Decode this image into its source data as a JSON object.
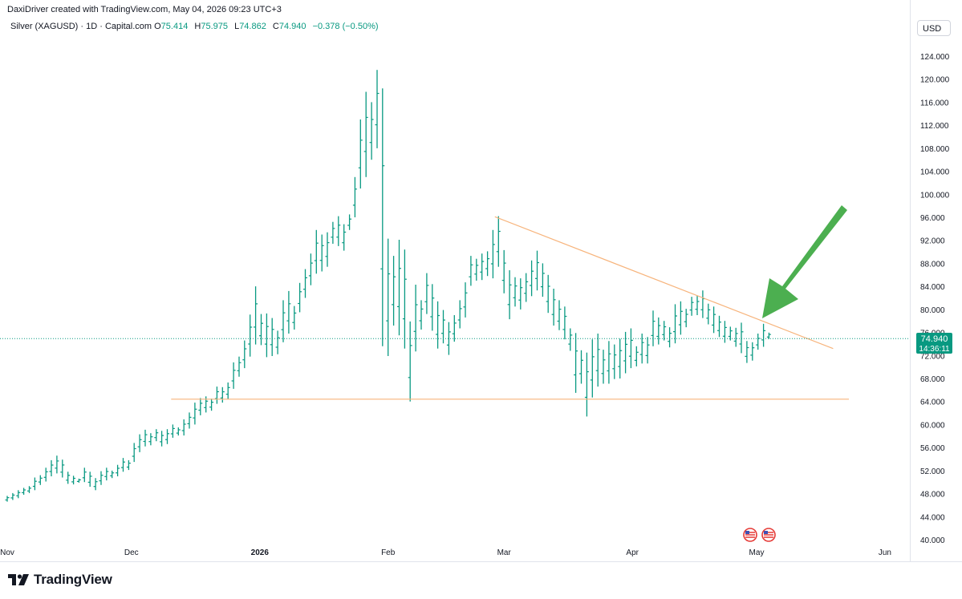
{
  "header": {
    "attribution": "DaxiDriver created with TradingView.com, May 04, 2026 09:23 UTC+3"
  },
  "legend": {
    "symbol_text": "Silver (XAGUSD) · 1D · Capital.com",
    "open_label": "O",
    "open": "75.414",
    "high_label": "H",
    "high": "75.975",
    "low_label": "L",
    "low": "74.862",
    "close_label": "C",
    "close": "74.940",
    "change": "−0.378 (−0.50%)"
  },
  "currency_button": "USD",
  "price_tag": {
    "price": "74.940",
    "countdown": "14:36:11"
  },
  "brand": "TradingView",
  "colors": {
    "up": "#089981",
    "trend": "#f7b47c",
    "arrow": "#4caf50",
    "axis_text": "#131722"
  },
  "chart_data": {
    "type": "ohlc-bar",
    "title": "Silver (XAGUSD) · 1D · Capital.com",
    "y_axis": {
      "position": "right",
      "range": [
        38,
        126
      ],
      "ticks": [
        "124.000",
        "120.000",
        "116.000",
        "112.000",
        "108.000",
        "104.000",
        "100.000",
        "96.000",
        "92.000",
        "88.000",
        "84.000",
        "80.000",
        "76.000",
        "72.000",
        "68.000",
        "64.000",
        "60.000",
        "56.000",
        "52.000",
        "48.000",
        "44.000",
        "40.000"
      ]
    },
    "x_axis": {
      "ticks": [
        {
          "label": "Nov",
          "day": 0
        },
        {
          "label": "Dec",
          "day": 30
        },
        {
          "label": "2026",
          "day": 61
        },
        {
          "label": "Feb",
          "day": 92
        },
        {
          "label": "Mar",
          "day": 120
        },
        {
          "label": "Apr",
          "day": 151
        },
        {
          "label": "May",
          "day": 181
        },
        {
          "label": "Jun",
          "day": 212
        }
      ]
    },
    "last_price": 74.94,
    "bars": [
      [
        47.6,
        46.6
      ],
      [
        48.1,
        46.9
      ],
      [
        48.6,
        47.2
      ],
      [
        49.0,
        47.8
      ],
      [
        49.3,
        48.1
      ],
      [
        50.8,
        48.6
      ],
      [
        51.2,
        49.5
      ],
      [
        52.5,
        50.1
      ],
      [
        53.8,
        51.0
      ],
      [
        54.6,
        51.5
      ],
      [
        53.9,
        50.8
      ],
      [
        51.8,
        49.7
      ],
      [
        51.1,
        49.6
      ],
      [
        50.6,
        49.9
      ],
      [
        52.5,
        50.0
      ],
      [
        51.8,
        49.2
      ],
      [
        50.7,
        48.6
      ],
      [
        51.9,
        49.5
      ],
      [
        52.5,
        50.3
      ],
      [
        52.0,
        50.7
      ],
      [
        53.0,
        51.0
      ],
      [
        54.2,
        51.8
      ],
      [
        53.8,
        52.1
      ],
      [
        56.8,
        53.5
      ],
      [
        58.3,
        55.2
      ],
      [
        59.1,
        56.2
      ],
      [
        58.5,
        56.4
      ],
      [
        59.2,
        57.1
      ],
      [
        58.9,
        56.2
      ],
      [
        59.2,
        56.6
      ],
      [
        60.0,
        57.7
      ],
      [
        59.5,
        58.1
      ],
      [
        60.9,
        58.1
      ],
      [
        62.1,
        59.3
      ],
      [
        63.8,
        60.0
      ],
      [
        64.6,
        61.6
      ],
      [
        64.9,
        62.1
      ],
      [
        64.5,
        62.4
      ],
      [
        66.6,
        63.6
      ],
      [
        66.5,
        63.8
      ],
      [
        67.3,
        64.4
      ],
      [
        70.8,
        66.2
      ],
      [
        71.8,
        68.3
      ],
      [
        74.6,
        69.8
      ],
      [
        79.1,
        71.8
      ],
      [
        84.0,
        73.9
      ],
      [
        79.2,
        73.8
      ],
      [
        79.3,
        71.7
      ],
      [
        78.5,
        71.9
      ],
      [
        76.3,
        72.2
      ],
      [
        81.6,
        74.3
      ],
      [
        83.2,
        75.8
      ],
      [
        80.6,
        76.5
      ],
      [
        84.6,
        79.5
      ],
      [
        87.0,
        82.0
      ],
      [
        89.7,
        84.2
      ],
      [
        93.8,
        86.2
      ],
      [
        93.0,
        86.6
      ],
      [
        93.4,
        87.4
      ],
      [
        95.2,
        91.4
      ],
      [
        96.2,
        91.0
      ],
      [
        94.8,
        90.2
      ],
      [
        96.5,
        93.8
      ],
      [
        103.0,
        96.0
      ],
      [
        113.0,
        101.0
      ],
      [
        117.8,
        103.0
      ],
      [
        116.0,
        106.0
      ],
      [
        121.6,
        108.0
      ],
      [
        118.4,
        73.6
      ],
      [
        92.3,
        71.9
      ],
      [
        89.3,
        77.2
      ],
      [
        92.1,
        75.5
      ],
      [
        90.4,
        73.2
      ],
      [
        77.9,
        64.0
      ],
      [
        84.3,
        72.7
      ],
      [
        81.6,
        76.5
      ],
      [
        86.3,
        79.2
      ],
      [
        84.4,
        76.3
      ],
      [
        81.4,
        73.2
      ],
      [
        79.9,
        74.1
      ],
      [
        77.8,
        72.1
      ],
      [
        79.0,
        74.4
      ],
      [
        81.6,
        76.7
      ],
      [
        84.7,
        78.6
      ],
      [
        89.3,
        84.1
      ],
      [
        88.8,
        85.0
      ],
      [
        89.7,
        85.1
      ],
      [
        90.1,
        85.8
      ],
      [
        93.8,
        85.4
      ],
      [
        96.2,
        87.4
      ],
      [
        90.3,
        82.8
      ],
      [
        86.8,
        78.3
      ],
      [
        85.6,
        80.5
      ],
      [
        85.4,
        80.0
      ],
      [
        86.3,
        81.3
      ],
      [
        88.5,
        82.3
      ],
      [
        90.2,
        83.3
      ],
      [
        88.0,
        82.2
      ],
      [
        86.0,
        79.4
      ],
      [
        83.6,
        77.2
      ],
      [
        81.6,
        76.4
      ],
      [
        80.5,
        74.8
      ],
      [
        76.7,
        72.8
      ],
      [
        75.9,
        65.5
      ],
      [
        72.9,
        67.1
      ],
      [
        72.5,
        61.4
      ],
      [
        74.8,
        64.7
      ],
      [
        75.8,
        66.6
      ],
      [
        73.0,
        67.1
      ],
      [
        74.5,
        67.1
      ],
      [
        73.9,
        67.9
      ],
      [
        74.9,
        68.0
      ],
      [
        76.1,
        68.9
      ],
      [
        76.7,
        69.8
      ],
      [
        73.6,
        70.1
      ],
      [
        75.8,
        70.6
      ],
      [
        75.2,
        70.6
      ],
      [
        79.8,
        73.6
      ],
      [
        78.6,
        73.9
      ],
      [
        78.0,
        74.6
      ],
      [
        76.9,
        73.4
      ],
      [
        80.9,
        74.1
      ],
      [
        81.4,
        75.6
      ],
      [
        80.1,
        76.9
      ],
      [
        82.2,
        78.9
      ],
      [
        82.4,
        79.0
      ],
      [
        83.3,
        78.5
      ],
      [
        81.0,
        77.4
      ],
      [
        80.5,
        75.9
      ],
      [
        78.9,
        75.2
      ],
      [
        78.0,
        74.2
      ],
      [
        77.0,
        74.6
      ],
      [
        76.8,
        73.5
      ],
      [
        77.7,
        72.4
      ],
      [
        74.5,
        70.7
      ],
      [
        74.3,
        71.1
      ],
      [
        75.8,
        73.0
      ],
      [
        77.5,
        73.5
      ],
      [
        75.975,
        74.862
      ]
    ],
    "lines": [
      {
        "name": "descending-trendline",
        "color": "#f7b47c",
        "points": [
          [
            125,
            96.1
          ],
          [
            229,
            73.2
          ]
        ]
      },
      {
        "name": "horizontal-support",
        "color": "#f7b47c",
        "points": [
          [
            41,
            64.4
          ],
          [
            236,
            64.4
          ]
        ]
      }
    ],
    "annotations": [
      {
        "type": "arrow",
        "color": "#4caf50",
        "points_to": "trendline breakout"
      }
    ]
  }
}
